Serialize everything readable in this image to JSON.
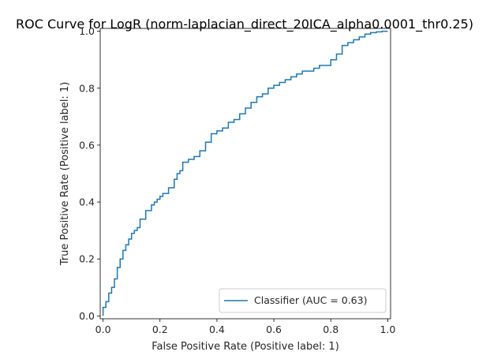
{
  "chart_data": {
    "type": "line",
    "title": "ROC Curve for LogR (norm-laplacian_direct_20ICA_alpha0.0001_thr0.25)",
    "xlabel": "False Positive Rate (Positive label: 1)",
    "ylabel": "True Positive Rate (Positive label: 1)",
    "xlim": [
      0,
      1
    ],
    "ylim": [
      0,
      1
    ],
    "xticks": [
      "0.0",
      "0.2",
      "0.4",
      "0.6",
      "0.8",
      "1.0"
    ],
    "yticks": [
      "0.0",
      "0.2",
      "0.4",
      "0.6",
      "0.8",
      "1.0"
    ],
    "grid": false,
    "legend_position": "lower-right",
    "series": [
      {
        "name": "Classifier (AUC = 0.63)",
        "color": "#1f77b4",
        "x": [
          0,
          0,
          0.01,
          0.02,
          0.03,
          0.04,
          0.05,
          0.06,
          0.07,
          0.08,
          0.09,
          0.1,
          0.11,
          0.12,
          0.13,
          0.15,
          0.17,
          0.18,
          0.19,
          0.2,
          0.21,
          0.23,
          0.25,
          0.26,
          0.27,
          0.28,
          0.3,
          0.32,
          0.34,
          0.36,
          0.38,
          0.4,
          0.42,
          0.44,
          0.46,
          0.48,
          0.5,
          0.52,
          0.54,
          0.56,
          0.58,
          0.6,
          0.62,
          0.64,
          0.66,
          0.68,
          0.7,
          0.72,
          0.74,
          0.76,
          0.78,
          0.8,
          0.82,
          0.84,
          0.86,
          0.88,
          0.9,
          0.92,
          0.94,
          0.96,
          0.98,
          1.0
        ],
        "y": [
          0,
          0.01,
          0.03,
          0.05,
          0.08,
          0.1,
          0.13,
          0.17,
          0.2,
          0.23,
          0.25,
          0.27,
          0.29,
          0.3,
          0.31,
          0.34,
          0.37,
          0.39,
          0.4,
          0.41,
          0.42,
          0.43,
          0.45,
          0.48,
          0.5,
          0.51,
          0.54,
          0.55,
          0.56,
          0.58,
          0.61,
          0.64,
          0.65,
          0.66,
          0.68,
          0.69,
          0.71,
          0.73,
          0.75,
          0.77,
          0.78,
          0.8,
          0.81,
          0.82,
          0.83,
          0.84,
          0.85,
          0.86,
          0.86,
          0.87,
          0.88,
          0.88,
          0.9,
          0.92,
          0.95,
          0.96,
          0.97,
          0.98,
          0.99,
          0.995,
          0.998,
          1.0
        ]
      }
    ]
  }
}
